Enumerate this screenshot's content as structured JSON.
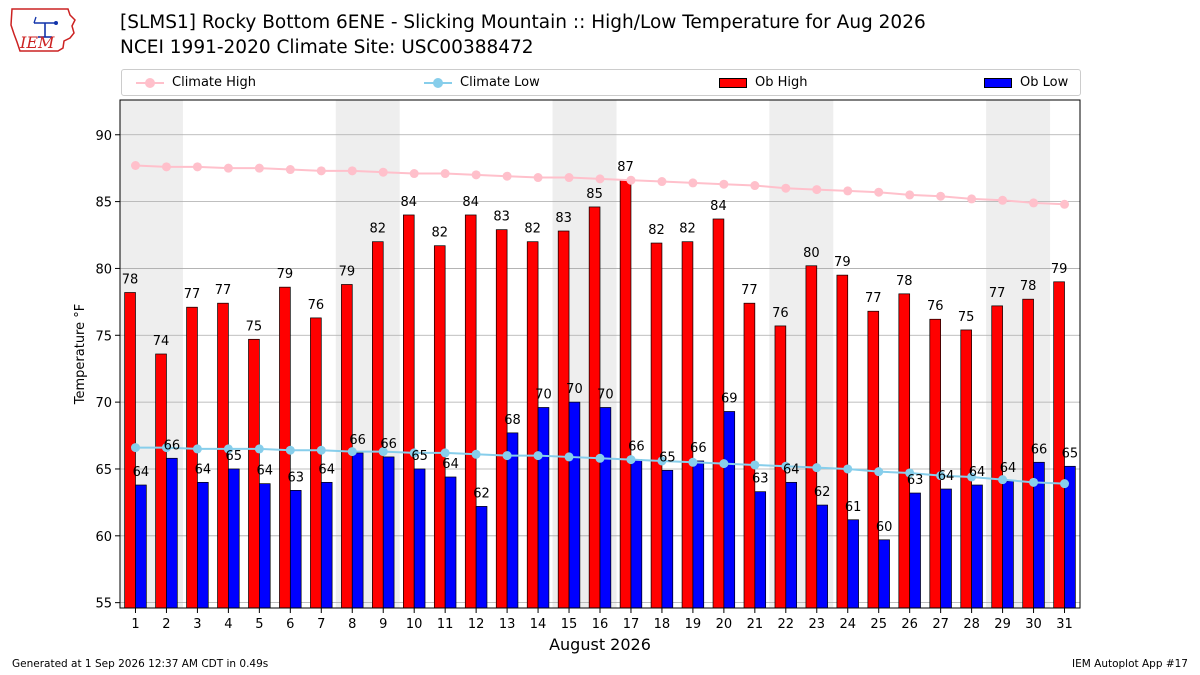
{
  "header": {
    "logo_text": "IEM",
    "title": "[SLMS1] Rocky Bottom 6ENE - Slicking Mountain :: High/Low Temperature for Aug 2026",
    "subtitle": "NCEI 1991-2020 Climate Site: USC00388472"
  },
  "legend": {
    "climate_high": "Climate High",
    "climate_low": "Climate Low",
    "ob_high": "Ob High",
    "ob_low": "Ob Low"
  },
  "colors": {
    "ob_high": "#ff0000",
    "ob_low": "#0000ff",
    "climate_high": "#ffc0cb",
    "climate_low": "#87ceeb",
    "weekend_shade": "#eeeeee",
    "grid": "#aaaaaa"
  },
  "chart_data": {
    "type": "bar",
    "title": "[SLMS1] Rocky Bottom 6ENE - Slicking Mountain :: High/Low Temperature for Aug 2026",
    "xlabel": "August 2026",
    "ylabel": "Temperature °F",
    "ylim": [
      54.6,
      92.6
    ],
    "yticks": [
      55,
      60,
      65,
      70,
      75,
      80,
      85,
      90
    ],
    "grid": "horizontal",
    "legend_position": "top",
    "categories": [
      "1",
      "2",
      "3",
      "4",
      "5",
      "6",
      "7",
      "8",
      "9",
      "10",
      "11",
      "12",
      "13",
      "14",
      "15",
      "16",
      "17",
      "18",
      "19",
      "20",
      "21",
      "22",
      "23",
      "24",
      "25",
      "26",
      "27",
      "28",
      "29",
      "30",
      "31"
    ],
    "shaded_days": [
      1,
      8,
      15,
      22,
      29
    ],
    "ob_high": [
      78.2,
      73.6,
      77.1,
      77.4,
      74.7,
      78.6,
      76.3,
      78.8,
      82.0,
      84.0,
      81.7,
      84.0,
      82.9,
      82.0,
      82.8,
      84.6,
      86.6,
      81.9,
      82.0,
      83.7,
      77.4,
      75.7,
      80.2,
      79.5,
      76.8,
      78.1,
      76.2,
      75.4,
      77.2,
      77.7,
      79.0
    ],
    "ob_high_labels": [
      "78",
      "74",
      "77",
      "77",
      "75",
      "79",
      "76",
      "79",
      "82",
      "84",
      "82",
      "84",
      "83",
      "82",
      "83",
      "85",
      "87",
      "82",
      "82",
      "84",
      "77",
      "76",
      "80",
      "79",
      "77",
      "78",
      "76",
      "75",
      "77",
      "78",
      "79"
    ],
    "ob_low": [
      63.8,
      65.8,
      64.0,
      65.0,
      63.9,
      63.4,
      64.0,
      66.2,
      65.9,
      65.0,
      64.4,
      62.2,
      67.7,
      69.6,
      70.0,
      69.6,
      65.7,
      64.9,
      65.6,
      69.3,
      63.3,
      64.0,
      62.3,
      61.2,
      59.7,
      63.2,
      63.5,
      63.8,
      64.1,
      65.5,
      65.2
    ],
    "ob_low_labels": [
      "64",
      "66",
      "64",
      "65",
      "64",
      "63",
      "64",
      "66",
      "66",
      "65",
      "64",
      "62",
      "68",
      "70",
      "70",
      "70",
      "66",
      "65",
      "66",
      "69",
      "63",
      "64",
      "62",
      "61",
      "60",
      "63",
      "64",
      "64",
      "64",
      "66",
      "65"
    ],
    "climate_high": [
      87.7,
      87.6,
      87.6,
      87.5,
      87.5,
      87.4,
      87.3,
      87.3,
      87.2,
      87.1,
      87.1,
      87.0,
      86.9,
      86.8,
      86.8,
      86.7,
      86.6,
      86.5,
      86.4,
      86.3,
      86.2,
      86.0,
      85.9,
      85.8,
      85.7,
      85.5,
      85.4,
      85.2,
      85.1,
      84.9,
      84.8
    ],
    "climate_low": [
      66.6,
      66.6,
      66.5,
      66.5,
      66.5,
      66.4,
      66.4,
      66.3,
      66.3,
      66.2,
      66.2,
      66.1,
      66.0,
      66.0,
      65.9,
      65.8,
      65.7,
      65.6,
      65.5,
      65.4,
      65.3,
      65.2,
      65.1,
      65.0,
      64.8,
      64.7,
      64.5,
      64.4,
      64.2,
      64.0,
      63.9
    ]
  },
  "footer": {
    "generated": "Generated at 1 Sep 2026 12:37 AM CDT in 0.49s",
    "app": "IEM Autoplot App #17"
  }
}
